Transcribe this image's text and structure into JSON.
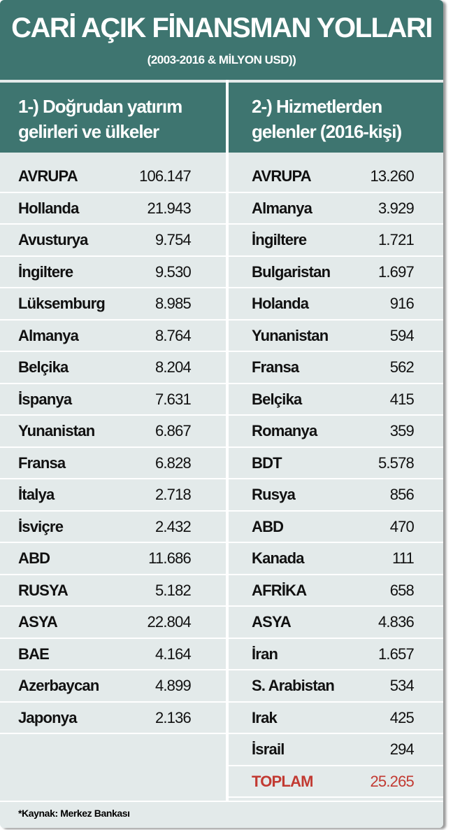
{
  "header": {
    "title": "CARİ AÇIK FİNANSMAN YOLLARI",
    "subtitle": "(2003-2016 & MİLYON USD))"
  },
  "columns": [
    {
      "heading": [
        "1-) Doğrudan yatırım",
        "gelirleri ve ülkeler"
      ],
      "rows": [
        [
          "AVRUPA",
          "106.147"
        ],
        [
          "Hollanda",
          "21.943"
        ],
        [
          "Avusturya",
          "9.754"
        ],
        [
          "İngiltere",
          "9.530"
        ],
        [
          "Lüksemburg",
          "8.985"
        ],
        [
          "Almanya",
          "8.764"
        ],
        [
          "Belçika",
          "8.204"
        ],
        [
          "İspanya",
          "7.631"
        ],
        [
          "Yunanistan",
          "6.867"
        ],
        [
          "Fransa",
          "6.828"
        ],
        [
          "İtalya",
          "2.718"
        ],
        [
          "İsviçre",
          "2.432"
        ],
        [
          "ABD",
          "11.686"
        ],
        [
          "RUSYA",
          "5.182"
        ],
        [
          "ASYA",
          "22.804"
        ],
        [
          "BAE",
          "4.164"
        ],
        [
          "Azerbaycan",
          "4.899"
        ],
        [
          "Japonya",
          "2.136"
        ]
      ]
    },
    {
      "heading": [
        "2-) Hizmetlerden",
        "gelenler (2016-kişi)"
      ],
      "rows": [
        [
          "AVRUPA",
          "13.260"
        ],
        [
          "Almanya",
          "3.929"
        ],
        [
          "İngiltere",
          "1.721"
        ],
        [
          "Bulgaristan",
          "1.697"
        ],
        [
          "Holanda",
          "916"
        ],
        [
          "Yunanistan",
          "594"
        ],
        [
          "Fransa",
          "562"
        ],
        [
          "Belçika",
          "415"
        ],
        [
          "Romanya",
          "359"
        ],
        [
          "BDT",
          "5.578"
        ],
        [
          "Rusya",
          "856"
        ],
        [
          "ABD",
          "470"
        ],
        [
          "Kanada",
          "111"
        ],
        [
          "AFRİKA",
          "658"
        ],
        [
          "ASYA",
          "4.836"
        ],
        [
          "İran",
          "1.657"
        ],
        [
          "S. Arabistan",
          "534"
        ],
        [
          "Irak",
          "425"
        ],
        [
          "İsrail",
          "294"
        ]
      ],
      "total": [
        "TOPLAM",
        "25.265"
      ]
    }
  ],
  "footer": "*Kaynak: Merkez Bankası"
}
